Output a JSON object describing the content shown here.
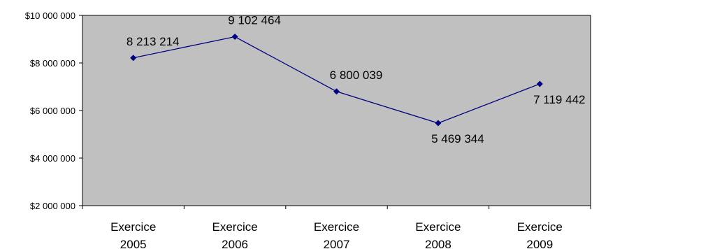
{
  "chart_data": {
    "type": "line",
    "categories": [
      "Exercice 2005",
      "Exercice 2006",
      "Exercice 2007",
      "Exercice 2008",
      "Exercice 2009"
    ],
    "category_lines": [
      [
        "Exercice",
        "2005"
      ],
      [
        "Exercice",
        "2006"
      ],
      [
        "Exercice",
        "2007"
      ],
      [
        "Exercice",
        "2008"
      ],
      [
        "Exercice",
        "2009"
      ]
    ],
    "values": [
      8213214,
      9102464,
      6800039,
      5469344,
      7119442
    ],
    "data_labels": [
      "8 213 214",
      "9 102 464",
      "6 800 039",
      "5 469 344",
      "7 119 442"
    ],
    "label_placement": [
      "above",
      "above",
      "above",
      "below",
      "below"
    ],
    "y_ticks": [
      2000000,
      4000000,
      6000000,
      8000000,
      10000000
    ],
    "y_tick_labels": [
      "$2 000 000",
      "$4 000 000",
      "$6 000 000",
      "$8 000 000",
      "$10 000 000"
    ],
    "ylim": [
      2000000,
      10000000
    ],
    "title": "",
    "xlabel": "",
    "ylabel": "",
    "grid": false,
    "legend": "none",
    "colors": {
      "plot_background": "#c0c0c0",
      "line": "#000080",
      "marker": "#000080",
      "axis": "#000000",
      "text": "#000000"
    }
  }
}
